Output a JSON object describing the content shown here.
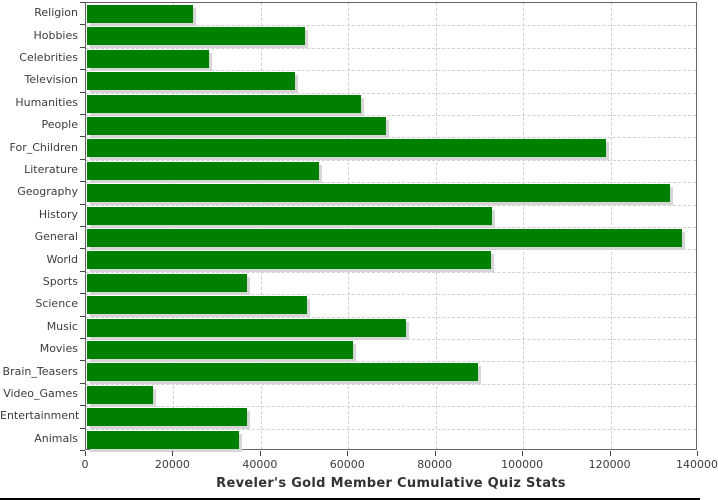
{
  "chart_data": {
    "type": "bar",
    "orientation": "horizontal",
    "title": "Reveler's Gold Member Cumulative Quiz Stats",
    "categories": [
      "Religion",
      "Hobbies",
      "Celebrities",
      "Television",
      "Humanities",
      "People",
      "For_Children",
      "Literature",
      "Geography",
      "History",
      "General",
      "World",
      "Sports",
      "Science",
      "Music",
      "Movies",
      "Brain_Teasers",
      "Video_Games",
      "Entertainment",
      "Animals"
    ],
    "values": [
      24200,
      49800,
      27800,
      47500,
      62700,
      68300,
      118600,
      53100,
      133300,
      92600,
      136200,
      92400,
      36600,
      50300,
      72900,
      60900,
      89500,
      15000,
      36500,
      34800
    ],
    "xlim": [
      0,
      140000
    ],
    "x_ticks": [
      0,
      20000,
      40000,
      60000,
      80000,
      100000,
      120000,
      140000
    ],
    "grid": "dashed",
    "legend": "none",
    "bar_color": "#008000",
    "shadow_color": "#d6d6d6",
    "gridline_color": "#d0d0d0",
    "frame_color": "#666666",
    "text_color": "#3c3c3c"
  }
}
